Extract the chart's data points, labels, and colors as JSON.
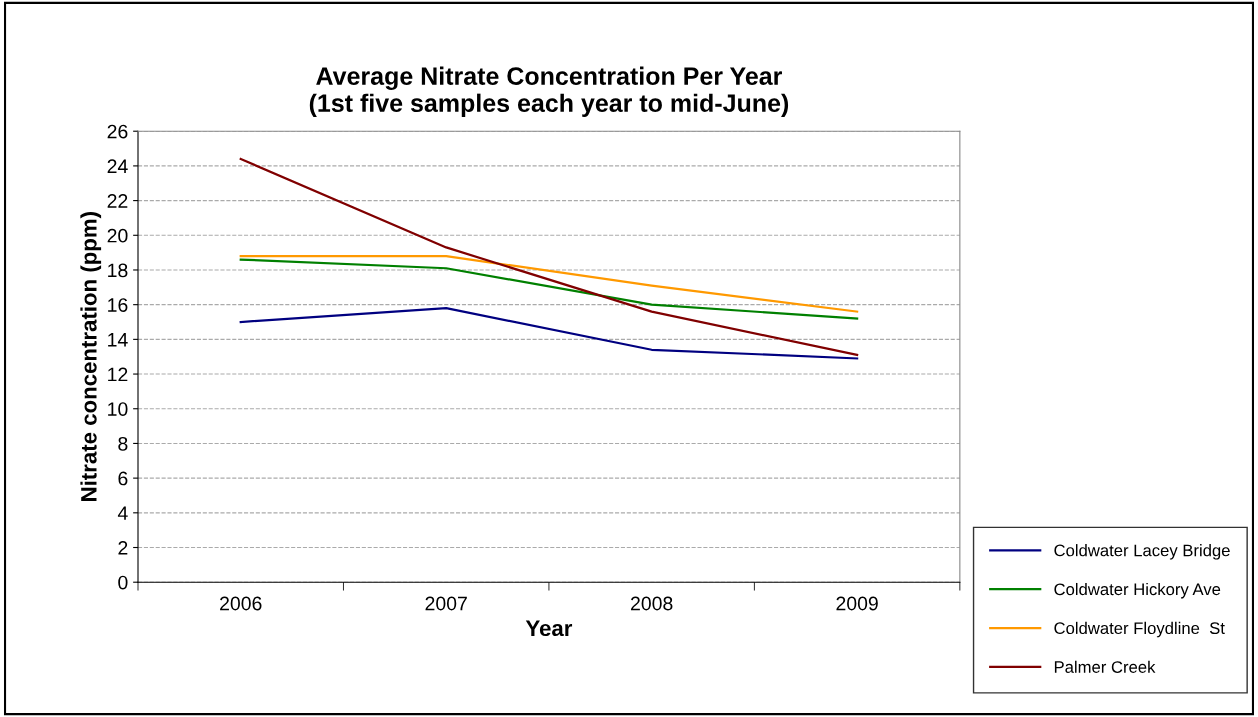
{
  "chart_data": {
    "type": "line",
    "title": "Average Nitrate Concentration Per Year\n(1st five samples each year to mid-June)",
    "xlabel": "Year",
    "ylabel": "Nitrate concentration (ppm)",
    "categories": [
      "2006",
      "2007",
      "2008",
      "2009"
    ],
    "series": [
      {
        "name": "Coldwater Lacey Bridge",
        "color": "#000080",
        "values": [
          15.0,
          15.8,
          13.4,
          12.9
        ]
      },
      {
        "name": "Coldwater Hickory Ave",
        "color": "#008000",
        "values": [
          18.6,
          18.1,
          16.0,
          15.2
        ]
      },
      {
        "name": "Coldwater Floydline  St",
        "color": "#ff9900",
        "values": [
          18.8,
          18.8,
          17.1,
          15.6
        ]
      },
      {
        "name": "Palmer Creek",
        "color": "#800000",
        "values": [
          24.4,
          19.3,
          15.6,
          13.1
        ]
      }
    ],
    "ylim": [
      0,
      26
    ],
    "yticks": [
      0,
      2,
      4,
      6,
      8,
      10,
      12,
      14,
      16,
      18,
      20,
      22,
      24,
      26
    ],
    "grid": "y",
    "legend": "bottom right",
    "marker": "none",
    "line_style": "solid"
  }
}
